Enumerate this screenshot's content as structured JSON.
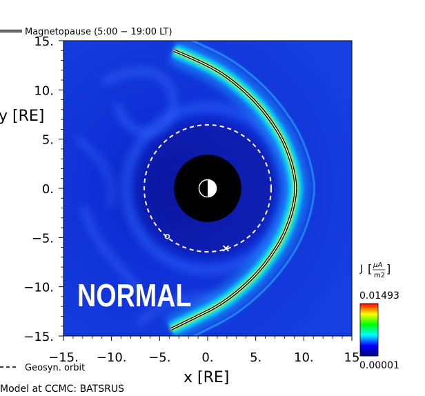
{
  "legend": {
    "magnetopause_label": "Magnetopause (5:00 − 19:00 LT)",
    "geosyn_label": "Geosyn. orbit"
  },
  "footer": {
    "model_label": "Model at CCMC: BATSRUS"
  },
  "status_label": "NORMAL",
  "colorbar": {
    "title_prefix": "J",
    "unit_numerator": "μA",
    "unit_denominator": "m2",
    "max_label": "0.01493",
    "min_label": "0.00001",
    "colors": [
      "#000080",
      "#0000ff",
      "#00ffff",
      "#00ff00",
      "#ffff00",
      "#ff0000"
    ]
  },
  "chart_data": {
    "type": "heatmap",
    "title": "",
    "xlabel": "x [RE]",
    "ylabel": "y [RE]",
    "xlim": [
      -15,
      15
    ],
    "ylim": [
      -15,
      15
    ],
    "x_ticks": [
      "−15.",
      "−10.",
      "−5.",
      "0.",
      "5.",
      "10.",
      "15"
    ],
    "y_ticks": [
      "15.",
      "10.",
      "5.",
      "0.",
      "−5.",
      "−10.",
      "−15."
    ],
    "x_tick_values": [
      -15,
      -10,
      -5,
      0,
      5,
      10,
      15
    ],
    "y_tick_values": [
      15,
      10,
      5,
      0,
      -5,
      -10,
      -15
    ],
    "colorbar_range": [
      1e-05,
      0.01493
    ],
    "magnetopause": {
      "x": [
        -3.5,
        -1.5,
        1.0,
        3.0,
        5.0,
        6.5,
        7.8,
        8.6,
        9.0,
        9.2,
        9.0,
        8.6,
        7.8,
        6.5,
        5.0,
        3.0,
        1.0,
        -1.5,
        -3.8
      ],
      "y": [
        14.0,
        13.2,
        12.0,
        10.6,
        8.8,
        7.0,
        5.0,
        3.0,
        1.5,
        0.0,
        -1.5,
        -3.0,
        -5.0,
        -7.0,
        -8.8,
        -10.6,
        -12.0,
        -13.2,
        -14.3
      ]
    },
    "geosync_orbit_radius": 6.6,
    "earth_radius": 3.5,
    "markers": [
      {
        "symbol": "o",
        "x": -4.2,
        "y": -4.9
      },
      {
        "symbol": "x",
        "x": 1.9,
        "y": -6.1
      }
    ]
  }
}
